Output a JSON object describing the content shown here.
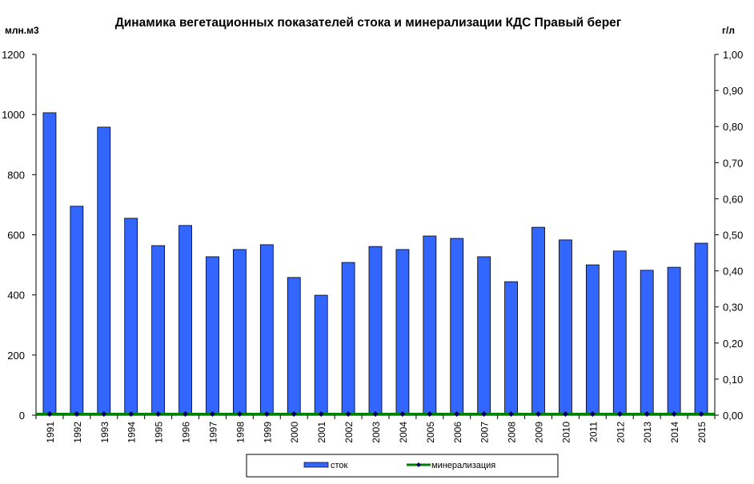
{
  "chart_data": {
    "type": "bar",
    "title": "Динамика вегетационных показателей стока и минерализации КДС Правый берег",
    "ylabel": "млн.м3",
    "y2label": "г/л",
    "xlabel": "",
    "categories": [
      "1991",
      "1992",
      "1993",
      "1994",
      "1995",
      "1996",
      "1997",
      "1998",
      "1999",
      "2000",
      "2001",
      "2002",
      "2003",
      "2004",
      "2005",
      "2006",
      "2007",
      "2008",
      "2009",
      "2010",
      "2011",
      "2012",
      "2013",
      "2014",
      "2015"
    ],
    "series": [
      {
        "name": "сток",
        "type": "bar",
        "axis": "left",
        "color": "#3366ff",
        "values": [
          1006,
          695,
          958,
          655,
          564,
          631,
          527,
          551,
          567,
          458,
          399,
          508,
          561,
          551,
          596,
          588,
          527,
          444,
          625,
          583,
          500,
          546,
          482,
          492,
          572
        ]
      },
      {
        "name": "минерализация",
        "type": "line",
        "axis": "right",
        "color": "#008000",
        "marker_color": "#000066",
        "values": [
          0,
          0,
          0,
          0,
          0,
          0,
          0,
          0,
          0,
          0,
          0,
          0,
          0,
          0,
          0,
          0,
          0,
          0,
          0,
          0,
          0,
          0,
          0,
          0,
          0
        ]
      }
    ],
    "ylim": [
      0,
      1200
    ],
    "yticks": [
      "0",
      "200",
      "400",
      "600",
      "800",
      "1000",
      "1200"
    ],
    "y2lim": [
      0,
      1.0
    ],
    "y2ticks": [
      "0,00",
      "0,10",
      "0,20",
      "0,30",
      "0,40",
      "0,50",
      "0,60",
      "0,70",
      "0,80",
      "0,90",
      "1,00"
    ],
    "grid": false,
    "legend_position": "bottom"
  }
}
